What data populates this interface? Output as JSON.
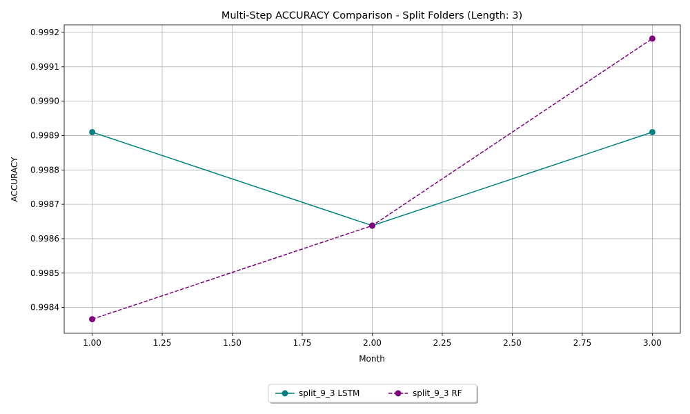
{
  "chart_data": {
    "type": "line",
    "title": "Multi-Step ACCURACY Comparison - Split Folders (Length: 3)",
    "xlabel": "Month",
    "ylabel": "ACCURACY",
    "x": [
      1.0,
      2.0,
      3.0
    ],
    "xlim": [
      0.9,
      3.1
    ],
    "ylim": [
      0.998325,
      0.999222
    ],
    "xticks": [
      "1.00",
      "1.25",
      "1.50",
      "1.75",
      "2.00",
      "2.25",
      "2.50",
      "2.75",
      "3.00"
    ],
    "yticks": [
      "0.9984",
      "0.9985",
      "0.9986",
      "0.9987",
      "0.9988",
      "0.9989",
      "0.9990",
      "0.9991",
      "0.9992"
    ],
    "grid": true,
    "legend_position": "bottom-center",
    "series": [
      {
        "name": "split_9_3 LSTM",
        "values": [
          0.99891,
          0.998638,
          0.99891
        ],
        "color": "#008080",
        "style": "solid",
        "marker": "circle"
      },
      {
        "name": "split_9_3 RF",
        "values": [
          0.998366,
          0.998638,
          0.999182
        ],
        "color": "#800080",
        "style": "dashed",
        "marker": "circle"
      }
    ]
  }
}
